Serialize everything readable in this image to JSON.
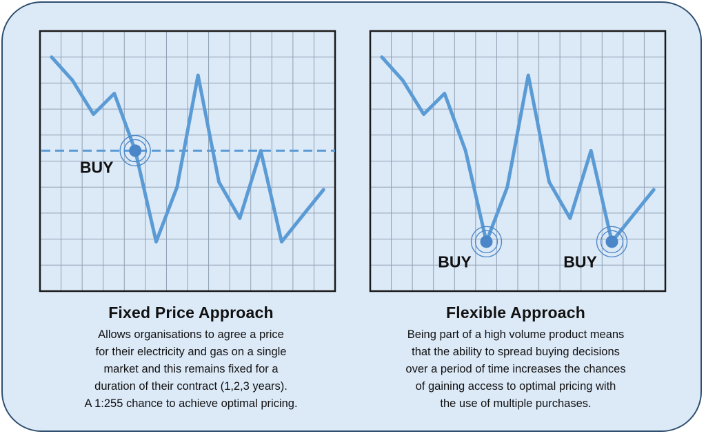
{
  "colors": {
    "background": "#dce9f7",
    "frame_border": "#2f4f6f",
    "grid": "#8fa0b2",
    "plot_border": "#1a1a1a",
    "line": "#5b9bd5",
    "marker": "#4a86c8",
    "text": "#111111"
  },
  "panels": [
    {
      "id": "fixed",
      "title": "Fixed Price Approach",
      "description_lines": [
        "Allows organisations to agree a price",
        "for their electricity and gas on a single",
        "market and this remains fixed for a",
        "duration of their contract (1,2,3 years).",
        "A 1:255 chance to achieve optimal pricing."
      ],
      "buy_markers": [
        {
          "label": "BUY",
          "point_index": 4
        }
      ],
      "fixed_price_level": 5.4
    },
    {
      "id": "flexible",
      "title": "Flexible Approach",
      "description_lines": [
        "Being part of a high volume product means",
        "that the ability to spread buying decisions",
        "over a period of time increases the chances",
        "of gaining access to optimal pricing with",
        "the use of multiple purchases."
      ],
      "buy_markers": [
        {
          "label": "BUY",
          "point_index": 5
        },
        {
          "label": "BUY",
          "point_index": 11
        }
      ]
    }
  ],
  "chart_data": {
    "type": "line",
    "grid": true,
    "axes_labels": false,
    "ylim": [
      0,
      10
    ],
    "x": [
      0,
      1,
      2,
      3,
      4,
      5,
      6,
      7,
      8,
      9,
      10,
      11,
      12,
      13
    ],
    "values": [
      9.0,
      8.1,
      6.8,
      7.6,
      5.4,
      1.9,
      4.0,
      8.3,
      4.2,
      2.8,
      5.4,
      1.9,
      2.9,
      3.9
    ]
  }
}
